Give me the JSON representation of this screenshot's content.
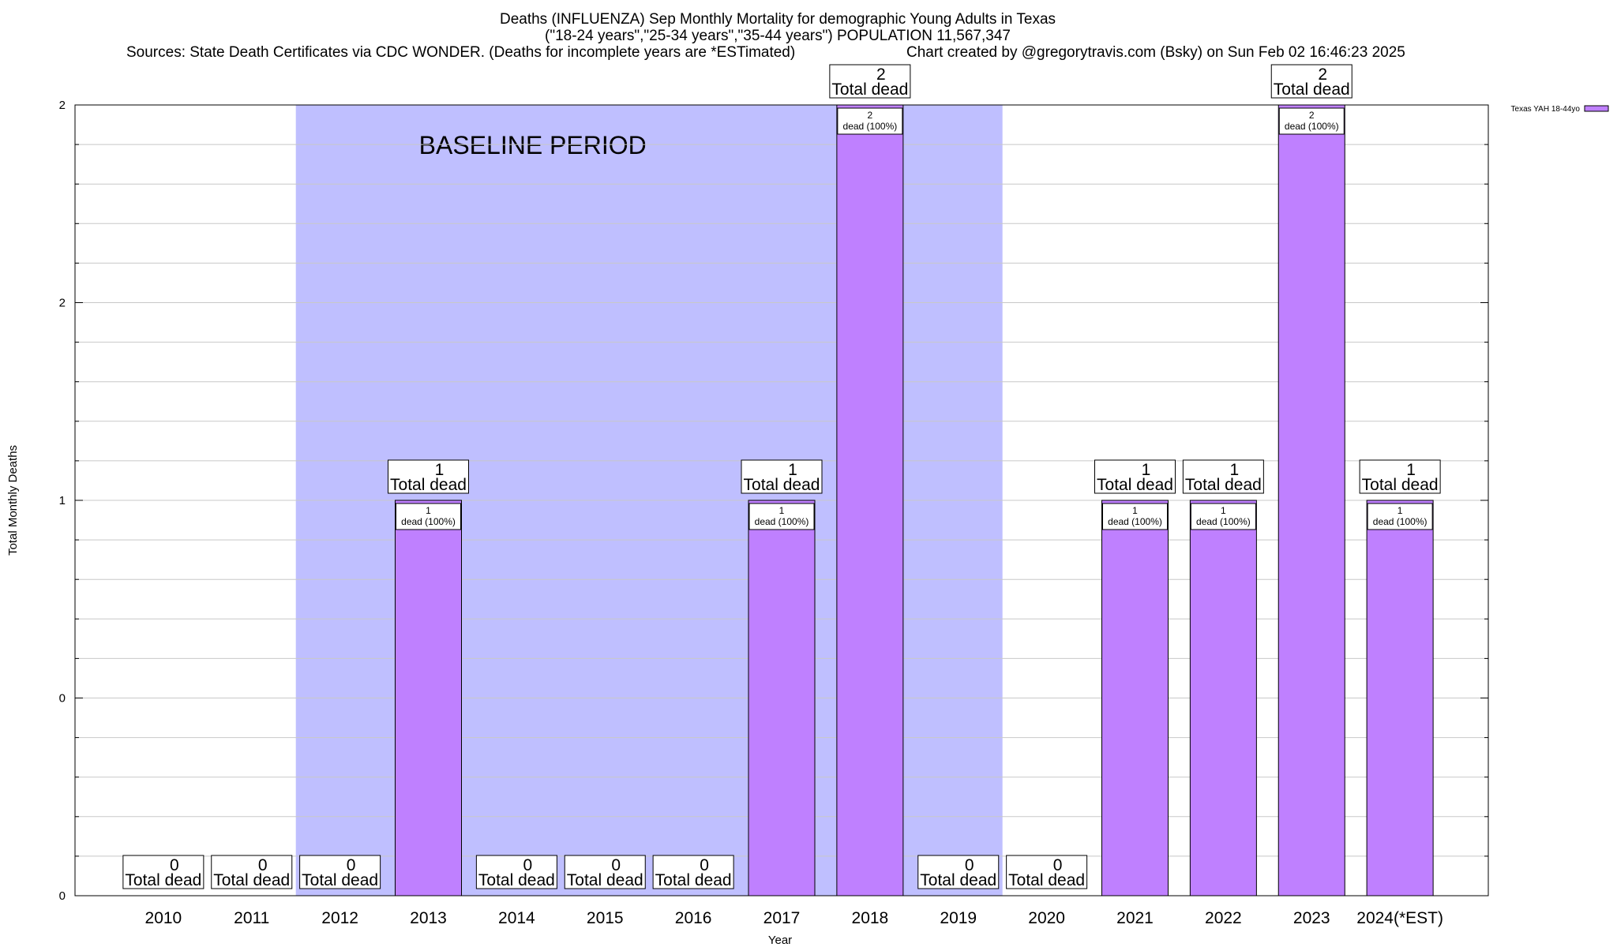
{
  "chart_data": {
    "type": "bar",
    "title_lines": [
      "Deaths (INFLUENZA) Sep Monthly Mortality for demographic Young Adults in Texas",
      "(\"18-24 years\",\"25-34 years\",\"35-44 years\") POPULATION 11,567,347"
    ],
    "sources_text": "Sources: State Death Certificates via CDC WONDER. (Deaths for incomplete years are *ESTimated)",
    "credit_text": "Chart created by @gregorytravis.com (Bsky) on Sun Feb 02 16:46:23 2025",
    "xlabel": "Year",
    "ylabel": "Total Monthly Deaths",
    "categories": [
      "2010",
      "2011",
      "2012",
      "2013",
      "2014",
      "2015",
      "2016",
      "2017",
      "2018",
      "2019",
      "2020",
      "2021",
      "2022",
      "2023",
      "2024(*EST)"
    ],
    "series": [
      {
        "name": "Texas YAH 18-44yo",
        "values": [
          0,
          0,
          0,
          1,
          0,
          0,
          0,
          1,
          2,
          0,
          0,
          1,
          1,
          2,
          1
        ]
      }
    ],
    "ylim": [
      0,
      2
    ],
    "ytick_labels": [
      "0",
      "0",
      "1",
      "2",
      "2"
    ],
    "total_label_suffix": "Total dead",
    "inner_label_suffix": "dead (100%)",
    "baseline_period": {
      "label": "BASELINE PERIOD",
      "from": "2012",
      "to": "2019"
    },
    "legend_position": "top-right",
    "grid": true,
    "colors": {
      "bar": "#bf80ff",
      "baseline": "#bfbfff",
      "grid": "#c8c8c8"
    }
  }
}
